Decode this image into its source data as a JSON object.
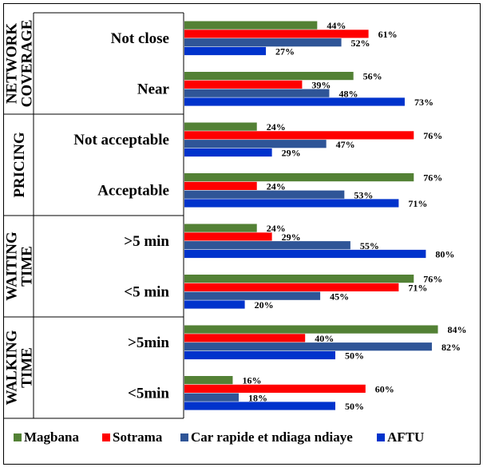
{
  "chart_data": {
    "type": "bar",
    "orientation": "horizontal",
    "title": "",
    "xlabel": "",
    "ylabel": "",
    "xlim": [
      0,
      100
    ],
    "grid": false,
    "legend_position": "bottom",
    "groups": [
      {
        "label_lines": [
          "NETWORK",
          "COVERAGE"
        ],
        "categories": [
          "Not close",
          "Near"
        ]
      },
      {
        "label_lines": [
          "PRICING"
        ],
        "categories": [
          "Not acceptable",
          "Acceptable"
        ]
      },
      {
        "label_lines": [
          "WAITING",
          "TIME"
        ],
        "categories": [
          ">5 min",
          "<5 min"
        ]
      },
      {
        "label_lines": [
          "WALKING",
          "TIME"
        ],
        "categories": [
          ">5min",
          "<5min"
        ]
      }
    ],
    "categories": [
      "Not close",
      "Near",
      "Not acceptable",
      "Acceptable",
      ">5 min",
      "<5 min",
      ">5min",
      "<5min"
    ],
    "series": [
      {
        "name": "Magbana",
        "color": "#538135",
        "values": [
          44,
          56,
          24,
          76,
          24,
          76,
          84,
          16
        ]
      },
      {
        "name": "Sotrama",
        "color": "#ff0000",
        "values": [
          61,
          39,
          76,
          24,
          29,
          71,
          40,
          60
        ]
      },
      {
        "name": "Car rapide et ndiaga ndiaye",
        "color": "#2f5597",
        "values": [
          52,
          48,
          47,
          53,
          55,
          45,
          82,
          18
        ]
      },
      {
        "name": "AFTU",
        "color": "#0033cc",
        "values": [
          27,
          73,
          29,
          71,
          80,
          20,
          50,
          50
        ]
      }
    ],
    "value_suffix": "%"
  }
}
